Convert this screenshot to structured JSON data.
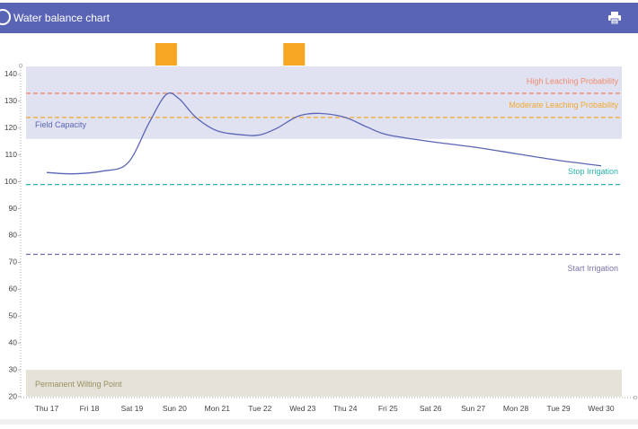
{
  "header": {
    "title": "Water balance chart",
    "print_icon": "printer-icon",
    "logo_icon": "logo-icon",
    "color": "#5a64b5"
  },
  "chart_data": {
    "type": "line",
    "title": "",
    "xlabel": "",
    "ylabel": "",
    "ylim": [
      20,
      143
    ],
    "y_ticks": [
      20,
      30,
      40,
      50,
      60,
      70,
      80,
      90,
      100,
      110,
      120,
      130,
      140
    ],
    "categories": [
      "Thu 17",
      "Fri 18",
      "Sat 19",
      "Sun 20",
      "Mon 21",
      "Tue 22",
      "Wed 23",
      "Thu 24",
      "Fri 25",
      "Sat 26",
      "Sun 27",
      "Mon 28",
      "Tue 29",
      "Wed 30"
    ],
    "series": [
      {
        "color": "#5a64b5",
        "points": [
          {
            "x": 0,
            "y": 103.5
          },
          {
            "x": 0.6,
            "y": 103
          },
          {
            "x": 1.3,
            "y": 104
          },
          {
            "x": 1.9,
            "y": 107
          },
          {
            "x": 2.4,
            "y": 122
          },
          {
            "x": 2.8,
            "y": 132.5
          },
          {
            "x": 3.1,
            "y": 131
          },
          {
            "x": 3.5,
            "y": 124
          },
          {
            "x": 4.0,
            "y": 119
          },
          {
            "x": 4.6,
            "y": 117.5
          },
          {
            "x": 5.0,
            "y": 117.5
          },
          {
            "x": 5.4,
            "y": 120
          },
          {
            "x": 5.9,
            "y": 124.5
          },
          {
            "x": 6.4,
            "y": 125.5
          },
          {
            "x": 7.0,
            "y": 124
          },
          {
            "x": 7.5,
            "y": 120.5
          },
          {
            "x": 8.0,
            "y": 117.5
          },
          {
            "x": 9.0,
            "y": 115
          },
          {
            "x": 10.0,
            "y": 113
          },
          {
            "x": 11.0,
            "y": 110.5
          },
          {
            "x": 12.0,
            "y": 108
          },
          {
            "x": 13.0,
            "y": 106
          }
        ]
      }
    ],
    "bands": [
      {
        "label": "Field Capacity",
        "from": 116,
        "to": 143,
        "color": "#e0e2f1",
        "label_color": "#5a64b5"
      },
      {
        "label": "Permanent Wilting Point",
        "from": 20,
        "to": 30,
        "color": "#e4e2d9",
        "label_color": "#9a9060"
      }
    ],
    "threshold_lines": [
      {
        "label": "High Leaching Probability",
        "value": 133,
        "color": "#f08a6c"
      },
      {
        "label": "Moderate Leaching Probability",
        "value": 124,
        "color": "#f0a830"
      },
      {
        "label": "Stop Irrigation",
        "value": 99,
        "color": "#2bb3ad"
      },
      {
        "label": "Start Irrigation",
        "value": 73,
        "color": "#7a74b0"
      }
    ],
    "event_markers": [
      {
        "x": 2.8,
        "color": "#f6a623"
      },
      {
        "x": 5.8,
        "color": "#f6a623"
      }
    ],
    "grid": false,
    "legend": "none"
  }
}
